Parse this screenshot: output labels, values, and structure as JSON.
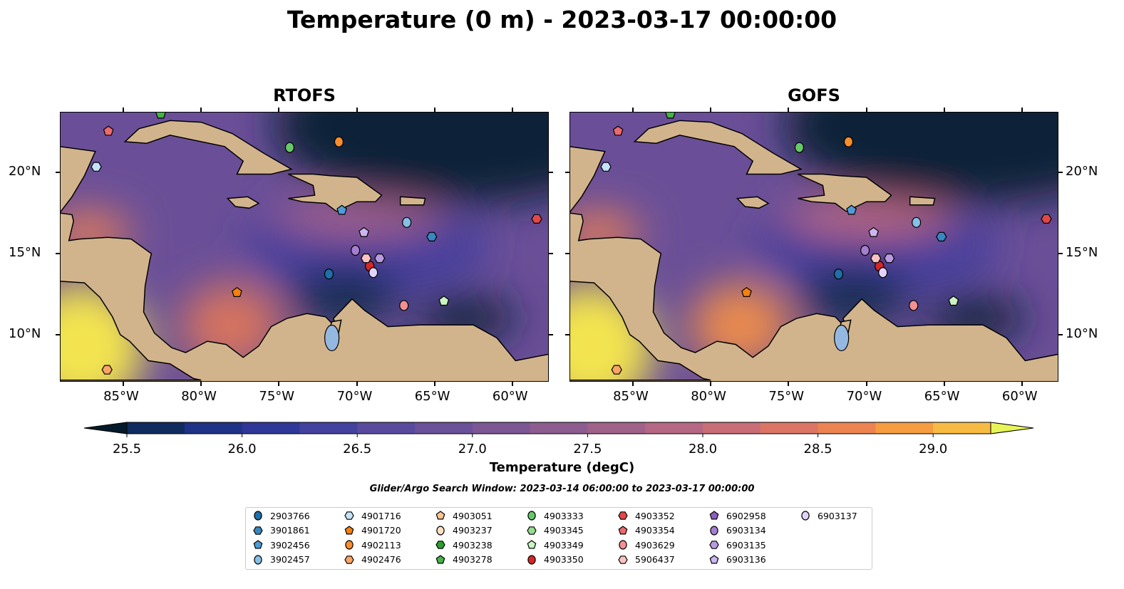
{
  "title": "Temperature (0 m) - 2023-03-17 00:00:00",
  "panels": [
    {
      "title": "RTOFS"
    },
    {
      "title": "GOFS"
    }
  ],
  "lon_ticks": [
    "85°W",
    "80°W",
    "75°W",
    "70°W",
    "65°W",
    "60°W"
  ],
  "lat_ticks": [
    "20°N",
    "15°N",
    "10°N"
  ],
  "extent": {
    "lon": [
      -89.08,
      -57.66
    ],
    "lat": [
      7.1,
      23.74
    ]
  },
  "colorbar": {
    "label": "Temperature (degC)",
    "ticks": [
      "25.5",
      "26.0",
      "26.5",
      "27.0",
      "27.5",
      "28.0",
      "28.5",
      "29.0"
    ],
    "min": 25.5,
    "max": 29.25,
    "step": 0.25,
    "colors": [
      "#05233a",
      "#102b5e",
      "#1e3287",
      "#2f3898",
      "#43429f",
      "#5a4a9d",
      "#6b5199",
      "#7c5794",
      "#8e5d8f",
      "#a1628a",
      "#b56783",
      "#c96d77",
      "#dc7566",
      "#ec8351",
      "#f69c41",
      "#f7bb43",
      "#f0dc4b"
    ],
    "under": "#041a2a",
    "over": "#e8f55a"
  },
  "search_window": "Glider/Argo Search Window: 2023-03-14 06:00:00 to 2023-03-17 00:00:00",
  "legend": [
    {
      "id": "2903766",
      "shape": "circle",
      "color": "#1f6fa8",
      "lon": -71.79,
      "lat": 13.74
    },
    {
      "id": "3901861",
      "shape": "hexagon",
      "color": "#3787c0",
      "lon": -65.18,
      "lat": 16.04
    },
    {
      "id": "3902456",
      "shape": "pentagon",
      "color": "#4f9bd6",
      "lon": -70.96,
      "lat": 17.67
    },
    {
      "id": "3902457",
      "shape": "circle",
      "color": "#86bfe8",
      "lon": -66.79,
      "lat": 16.92
    },
    {
      "id": "4901716",
      "shape": "hexagon",
      "color": "#c4e3f9",
      "lon": -86.74,
      "lat": 20.35
    },
    {
      "id": "4901720",
      "shape": "pentagon",
      "color": "#f57f0f",
      "lon": -77.7,
      "lat": 12.6
    },
    {
      "id": "4902113",
      "shape": "circle",
      "color": "#f98d2c",
      "lon": -71.15,
      "lat": 21.89
    },
    {
      "id": "4902476",
      "shape": "hexagon",
      "color": "#fba463",
      "lon": -86.05,
      "lat": 7.84
    },
    {
      "id": "4903051",
      "shape": "pentagon",
      "color": "#fcc491"
    },
    {
      "id": "4903237",
      "shape": "circle",
      "color": "#fde0c4"
    },
    {
      "id": "4903238",
      "shape": "hexagon",
      "color": "#2a9e2f"
    },
    {
      "id": "4903278",
      "shape": "pentagon",
      "color": "#45b347",
      "lon": -82.6,
      "lat": 23.6
    },
    {
      "id": "4903333",
      "shape": "circle",
      "color": "#67c867",
      "lon": -74.31,
      "lat": 21.54
    },
    {
      "id": "4903345",
      "shape": "hexagon",
      "color": "#96dc8e"
    },
    {
      "id": "4903349",
      "shape": "pentagon",
      "color": "#c8f5c2",
      "lon": -64.4,
      "lat": 12.07
    },
    {
      "id": "4903350",
      "shape": "circle",
      "color": "#d62728",
      "lon": -69.17,
      "lat": 14.23
    },
    {
      "id": "4903352",
      "shape": "hexagon",
      "color": "#e24748",
      "lon": -58.44,
      "lat": 17.14
    },
    {
      "id": "4903354",
      "shape": "pentagon",
      "color": "#ec6a6b",
      "lon": -85.96,
      "lat": 22.55
    },
    {
      "id": "4903629",
      "shape": "circle",
      "color": "#f39090",
      "lon": -66.97,
      "lat": 11.8
    },
    {
      "id": "5906437",
      "shape": "hexagon",
      "color": "#fbc2c2",
      "lon": -69.4,
      "lat": 14.71
    },
    {
      "id": "6902958",
      "shape": "pentagon",
      "color": "#8d5fbc"
    },
    {
      "id": "6903134",
      "shape": "circle",
      "color": "#a47fd0",
      "lon": -70.09,
      "lat": 15.2
    },
    {
      "id": "6903135",
      "shape": "hexagon",
      "color": "#b99be0",
      "lon": -68.53,
      "lat": 14.71
    },
    {
      "id": "6903136",
      "shape": "pentagon",
      "color": "#cdb6ef",
      "lon": -69.54,
      "lat": 16.3
    },
    {
      "id": "6903137",
      "shape": "circle",
      "color": "#e3d3fa",
      "lon": -68.94,
      "lat": 13.83
    }
  ]
}
